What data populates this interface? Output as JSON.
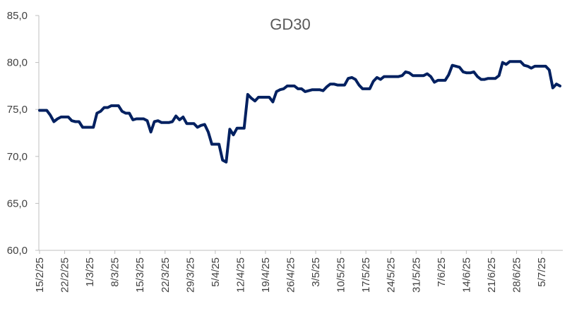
{
  "chart_data": {
    "type": "line",
    "title": "GD30",
    "xlabel": "",
    "ylabel": "",
    "ylim": [
      60,
      85
    ],
    "yticks": [
      60,
      65,
      70,
      75,
      80,
      85
    ],
    "ytick_labels": [
      "60,0",
      "65,0",
      "70,0",
      "75,0",
      "80,0",
      "85,0"
    ],
    "xtick_labels": [
      "15/2/25",
      "22/2/25",
      "1/3/25",
      "8/3/25",
      "15/3/25",
      "22/3/25",
      "29/3/25",
      "5/4/25",
      "12/4/25",
      "19/4/25",
      "26/4/25",
      "3/5/25",
      "10/5/25",
      "17/5/25",
      "24/5/25",
      "31/5/25",
      "7/6/25",
      "14/6/25",
      "21/6/25",
      "28/6/25",
      "5/7/25"
    ],
    "grid": false,
    "line_color": "#002060",
    "series": [
      {
        "name": "GD30",
        "x": [
          0,
          1,
          2,
          3,
          4,
          5,
          6,
          7,
          8,
          9,
          10,
          11,
          12,
          13,
          14,
          15,
          16,
          17,
          18,
          19,
          20,
          21,
          22,
          23,
          24,
          25,
          26,
          27,
          28,
          29,
          30,
          31,
          32,
          33,
          34,
          35,
          36,
          37,
          38,
          39,
          40,
          41,
          42,
          43,
          44,
          45,
          46,
          47,
          48,
          49,
          50,
          51,
          52,
          53,
          54,
          55,
          56,
          57,
          58,
          59,
          60,
          61,
          62,
          63,
          64,
          65,
          66,
          67,
          68,
          69,
          70,
          71,
          72,
          73,
          74,
          75,
          76,
          77,
          78,
          79,
          80,
          81,
          82,
          83,
          84,
          85,
          86,
          87,
          88,
          89,
          90,
          91,
          92,
          93,
          94,
          95,
          96,
          97,
          98,
          99,
          100,
          101,
          102,
          103,
          104,
          105,
          106,
          107,
          108,
          109,
          110,
          111,
          112,
          113,
          114,
          115,
          116,
          117,
          118,
          119,
          120,
          121,
          122,
          123,
          124,
          125,
          126,
          127,
          128,
          129,
          130,
          131,
          132,
          133,
          134,
          135,
          136,
          137,
          138,
          139,
          140,
          141,
          142,
          143,
          144,
          145
        ],
        "values": [
          74.9,
          74.9,
          74.9,
          74.4,
          73.7,
          74.0,
          74.2,
          74.2,
          74.2,
          73.8,
          73.7,
          73.7,
          73.1,
          73.1,
          73.1,
          73.1,
          74.6,
          74.8,
          75.2,
          75.2,
          75.4,
          75.4,
          75.4,
          74.8,
          74.6,
          74.6,
          73.9,
          74.0,
          74.0,
          74.0,
          73.8,
          72.6,
          73.7,
          73.8,
          73.6,
          73.6,
          73.6,
          73.7,
          74.3,
          73.9,
          74.2,
          73.5,
          73.5,
          73.5,
          73.1,
          73.3,
          73.4,
          72.6,
          71.3,
          71.3,
          71.3,
          69.6,
          69.4,
          72.9,
          72.3,
          73.0,
          73.0,
          73.0,
          76.6,
          76.2,
          75.9,
          76.3,
          76.3,
          76.3,
          76.3,
          75.8,
          76.9,
          77.1,
          77.2,
          77.5,
          77.5,
          77.5,
          77.2,
          77.2,
          76.9,
          77.0,
          77.1,
          77.1,
          77.1,
          77.0,
          77.4,
          77.7,
          77.7,
          77.6,
          77.6,
          77.6,
          78.3,
          78.4,
          78.2,
          77.6,
          77.2,
          77.2,
          77.2,
          78.0,
          78.4,
          78.2,
          78.5,
          78.5,
          78.5,
          78.5,
          78.5,
          78.6,
          79.0,
          78.9,
          78.6,
          78.6,
          78.6,
          78.6,
          78.8,
          78.5,
          77.9,
          78.1,
          78.1,
          78.1,
          78.7,
          79.7,
          79.6,
          79.5,
          79.0,
          78.9,
          78.9,
          79.0,
          78.5,
          78.2,
          78.2,
          78.3,
          78.3,
          78.3,
          78.6,
          80.0,
          79.8,
          80.1,
          80.1,
          80.1,
          80.1,
          79.7,
          79.6,
          79.4,
          79.6,
          79.6,
          79.6,
          79.6,
          79.2,
          77.3,
          77.7,
          77.5
        ]
      }
    ]
  }
}
